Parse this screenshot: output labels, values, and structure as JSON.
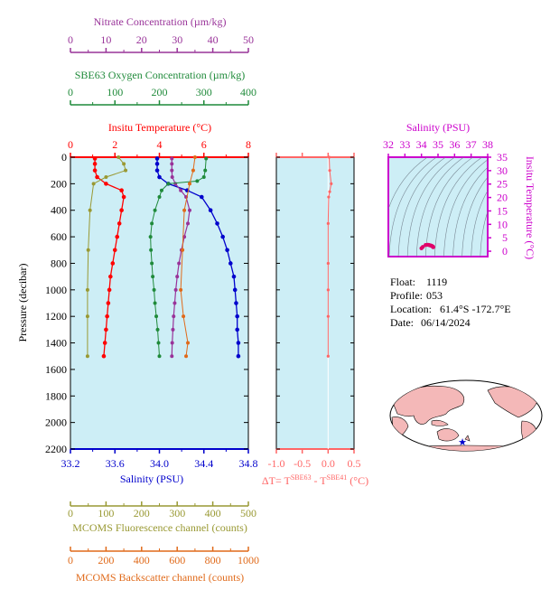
{
  "colors": {
    "nitrate": "#993399",
    "oxygen": "#1f8a3a",
    "temperature": "#ff0000",
    "salinity": "#0000cc",
    "fluorescence": "#999933",
    "backscatter": "#e06a1a",
    "delta": "#ff6666",
    "ts_axis": "#cc00cc",
    "plot_bg": "#cdeef6"
  },
  "info": {
    "float_label": "Float:",
    "float_value": "1119",
    "profile_label": "Profile:",
    "profile_value": "053",
    "location_label": "Location:",
    "location_value": "61.4°S  -172.7°E",
    "date_label": "Date:",
    "date_value": "06/14/2024"
  },
  "map_panel": {
    "marker_icon": "star-icon"
  },
  "chart_data": [
    {
      "type": "line",
      "name": "main-profile",
      "ylabel": "Pressure (decibar)",
      "ylim": [
        2200,
        0
      ],
      "yticks": [
        0,
        200,
        400,
        600,
        800,
        1000,
        1200,
        1400,
        1600,
        1800,
        2000,
        2200
      ],
      "axes": {
        "nitrate": {
          "label": "Nitrate Concentration (µm/kg)",
          "range": [
            0,
            50
          ],
          "ticks": [
            0,
            10,
            20,
            30,
            40,
            50
          ]
        },
        "oxygen": {
          "label": "SBE63 Oxygen Concentration (µm/kg)",
          "range": [
            0,
            400
          ],
          "ticks": [
            0,
            100,
            200,
            300,
            400
          ]
        },
        "temperature": {
          "label": "Insitu Temperature (°C)",
          "range": [
            0,
            8
          ],
          "ticks": [
            0,
            2,
            4,
            6,
            8
          ]
        },
        "salinity": {
          "label": "Salinity (PSU)",
          "range": [
            33.2,
            34.8
          ],
          "ticks": [
            "33.2",
            "33.6",
            "34.0",
            "34.4",
            "34.8"
          ]
        },
        "fluorescence": {
          "label": "MCOMS Fluorescence channel (counts)",
          "range": [
            0,
            500
          ],
          "ticks": [
            0,
            100,
            200,
            300,
            400,
            500
          ]
        },
        "backscatter": {
          "label": "MCOMS Backscatter channel (counts)",
          "range": [
            0,
            1000
          ],
          "ticks": [
            0,
            200,
            400,
            600,
            800,
            1000
          ]
        }
      },
      "series": [
        {
          "key": "temperature",
          "points": [
            [
              1.1,
              10
            ],
            [
              1.1,
              50
            ],
            [
              1.1,
              100
            ],
            [
              1.2,
              150
            ],
            [
              1.6,
              200
            ],
            [
              2.3,
              250
            ],
            [
              2.4,
              300
            ],
            [
              2.3,
              400
            ],
            [
              2.2,
              500
            ],
            [
              2.1,
              600
            ],
            [
              2.0,
              700
            ],
            [
              1.9,
              800
            ],
            [
              1.8,
              900
            ],
            [
              1.75,
              1000
            ],
            [
              1.7,
              1100
            ],
            [
              1.65,
              1200
            ],
            [
              1.6,
              1300
            ],
            [
              1.55,
              1400
            ],
            [
              1.5,
              1500
            ]
          ]
        },
        {
          "key": "salinity",
          "points": [
            [
              33.98,
              10
            ],
            [
              33.98,
              50
            ],
            [
              33.98,
              100
            ],
            [
              34.0,
              150
            ],
            [
              34.08,
              200
            ],
            [
              34.25,
              250
            ],
            [
              34.38,
              300
            ],
            [
              34.46,
              400
            ],
            [
              34.52,
              500
            ],
            [
              34.57,
              600
            ],
            [
              34.61,
              700
            ],
            [
              34.64,
              800
            ],
            [
              34.67,
              900
            ],
            [
              34.68,
              1000
            ],
            [
              34.69,
              1100
            ],
            [
              34.7,
              1200
            ],
            [
              34.7,
              1300
            ],
            [
              34.71,
              1400
            ],
            [
              34.71,
              1500
            ]
          ]
        },
        {
          "key": "nitrate",
          "points": [
            [
              28.5,
              10
            ],
            [
              28.5,
              50
            ],
            [
              28.5,
              100
            ],
            [
              28.6,
              150
            ],
            [
              29.5,
              200
            ],
            [
              31.0,
              250
            ],
            [
              32.5,
              300
            ],
            [
              33.5,
              400
            ],
            [
              33.0,
              500
            ],
            [
              32.0,
              600
            ],
            [
              31.2,
              700
            ],
            [
              30.5,
              800
            ],
            [
              30.0,
              900
            ],
            [
              29.6,
              1000
            ],
            [
              29.3,
              1100
            ],
            [
              29.0,
              1200
            ],
            [
              28.8,
              1300
            ],
            [
              28.6,
              1400
            ],
            [
              28.5,
              1500
            ]
          ]
        },
        {
          "key": "oxygen",
          "points": [
            [
              305,
              10
            ],
            [
              303,
              100
            ],
            [
              300,
              150
            ],
            [
              285,
              180
            ],
            [
              220,
              200
            ],
            [
              205,
              250
            ],
            [
              200,
              300
            ],
            [
              190,
              400
            ],
            [
              183,
              500
            ],
            [
              180,
              600
            ],
            [
              181,
              700
            ],
            [
              183,
              800
            ],
            [
              185,
              900
            ],
            [
              188,
              1000
            ],
            [
              190,
              1100
            ],
            [
              193,
              1200
            ],
            [
              196,
              1300
            ],
            [
              198,
              1400
            ],
            [
              200,
              1500
            ]
          ]
        },
        {
          "key": "fluorescence",
          "points": [
            [
              135,
              0
            ],
            [
              150,
              50
            ],
            [
              155,
              100
            ],
            [
              100,
              150
            ],
            [
              65,
              200
            ],
            [
              55,
              400
            ],
            [
              50,
              700
            ],
            [
              48,
              1000
            ],
            [
              48,
              1200
            ],
            [
              48,
              1500
            ]
          ]
        },
        {
          "key": "backscatter",
          "points": [
            [
              700,
              0
            ],
            [
              690,
              100
            ],
            [
              670,
              200
            ],
            [
              640,
              400
            ],
            [
              630,
              700
            ],
            [
              620,
              1000
            ],
            [
              635,
              1200
            ],
            [
              660,
              1400
            ],
            [
              650,
              1500
            ]
          ]
        }
      ]
    },
    {
      "type": "line",
      "name": "delta-t",
      "xlabel_main": "ΔT= T",
      "xlabel_sup1": "SBE63",
      "xlabel_mid": " - T",
      "xlabel_sup2": "SBE41",
      "xlabel_unit": " (°C)",
      "xlim": [
        -1.0,
        0.5
      ],
      "xticks": [
        "-1.0",
        "-0.5",
        "0.0",
        "0.5"
      ],
      "ylim": [
        2200,
        0
      ],
      "series": [
        {
          "key": "delta",
          "points": [
            [
              0.02,
              0
            ],
            [
              0.03,
              100
            ],
            [
              0.06,
              200
            ],
            [
              0.03,
              260
            ],
            [
              0.01,
              300
            ],
            [
              0.0,
              500
            ],
            [
              0.0,
              800
            ],
            [
              0.0,
              1000
            ],
            [
              0.0,
              1200
            ],
            [
              0.0,
              1500
            ]
          ]
        }
      ]
    },
    {
      "type": "scatter",
      "name": "ts-diagram",
      "xlabel": "Salinity (PSU)",
      "ylabel": "Insitu Temperature (°C)",
      "xlim": [
        32,
        38
      ],
      "ylim": [
        -2,
        35
      ],
      "xticks": [
        32,
        33,
        34,
        35,
        36,
        37,
        38
      ],
      "yticks": [
        0,
        5,
        10,
        15,
        20,
        25,
        30,
        35
      ],
      "points": [
        [
          34.0,
          1.1
        ],
        [
          34.08,
          1.6
        ],
        [
          34.25,
          2.3
        ],
        [
          34.38,
          2.4
        ],
        [
          34.46,
          2.3
        ],
        [
          34.52,
          2.2
        ],
        [
          34.57,
          2.1
        ],
        [
          34.61,
          2.0
        ],
        [
          34.64,
          1.9
        ],
        [
          34.67,
          1.8
        ],
        [
          34.68,
          1.75
        ],
        [
          34.7,
          1.65
        ],
        [
          34.71,
          1.5
        ]
      ]
    }
  ]
}
